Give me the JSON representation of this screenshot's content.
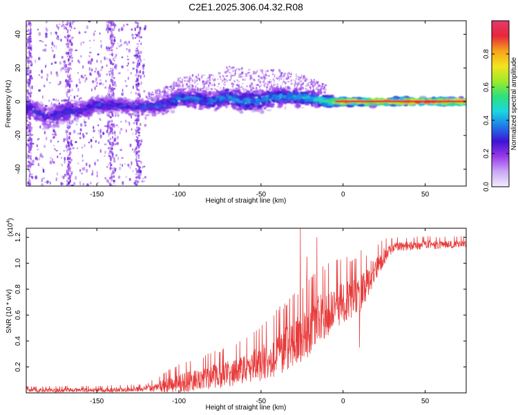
{
  "figure": {
    "title": "C2E1.2025.306.04.32.R08"
  },
  "colors": {
    "snr_line": "#e83a3a",
    "frame": "#000000",
    "background": "#ffffff",
    "colormap": [
      "#f2eefc",
      "#c9a8f5",
      "#9a3ae8",
      "#3d13d6",
      "#1f7ae8",
      "#1ad7e0",
      "#2ee07a",
      "#9eea2a",
      "#f4e31d",
      "#f6a21b",
      "#e8263b",
      "#e23a6b"
    ]
  },
  "chart_data": [
    {
      "type": "heatmap",
      "name": "spectrogram",
      "xlabel": "Height of straight line (km)",
      "ylabel": "Frequency (Hz)",
      "xlim": [
        -193,
        75
      ],
      "ylim": [
        -50,
        48
      ],
      "xticks": [
        -150,
        -100,
        -50,
        0,
        50
      ],
      "xtick_labels": [
        "-150",
        "-100",
        "-50",
        "0",
        "50"
      ],
      "yticks": [
        -40,
        -20,
        0,
        20,
        40
      ],
      "ytick_labels": [
        "-40",
        "-20",
        "0",
        "20",
        "40"
      ],
      "center_track": {
        "x": [
          -190,
          -180,
          -170,
          -160,
          -150,
          -140,
          -130,
          -120,
          -110,
          -100,
          -90,
          -80,
          -70,
          -60,
          -50,
          -40,
          -30,
          -20,
          -10,
          0,
          10,
          20,
          30,
          40,
          50,
          60,
          70,
          75
        ],
        "frequency": [
          -4,
          -10,
          -6,
          -5,
          -2,
          -2,
          -3,
          -3,
          -2,
          2,
          2,
          0,
          3,
          0,
          1,
          3,
          3,
          2,
          0,
          0,
          0,
          0,
          0,
          0,
          0,
          0,
          0,
          0
        ],
        "spread": [
          8,
          10,
          9,
          8,
          7,
          6,
          6,
          6,
          7,
          8,
          8,
          8,
          9,
          8,
          8,
          8,
          7,
          6,
          5,
          3,
          3,
          3,
          3,
          3,
          3,
          3,
          3,
          3
        ],
        "amplitude": [
          0.3,
          0.25,
          0.3,
          0.3,
          0.3,
          0.3,
          0.3,
          0.32,
          0.33,
          0.35,
          0.35,
          0.35,
          0.38,
          0.38,
          0.38,
          0.4,
          0.4,
          0.45,
          0.55,
          0.85,
          0.85,
          0.9,
          0.9,
          0.92,
          0.92,
          0.93,
          0.93,
          0.93
        ]
      },
      "scatter_region": {
        "x_range": [
          -193,
          -120
        ],
        "frequency_range": [
          -50,
          48
        ],
        "amplitude": 0.12
      },
      "colorbar": {
        "label": "Normalized spectral amplitude",
        "range": [
          0,
          1
        ],
        "ticks": [
          0.0,
          0.2,
          0.4,
          0.6,
          0.8
        ],
        "tick_labels": [
          "0.0",
          "0.2",
          "0.4",
          "0.6",
          "0.8"
        ]
      }
    },
    {
      "type": "line",
      "name": "snr",
      "xlabel": "Height of straight line (km)",
      "ylabel": "SNR (10 * v/v)",
      "scale_label": "(x10",
      "scale_exponent": "4",
      "scale_close": ")",
      "xlim": [
        -193,
        75
      ],
      "ylim": [
        0,
        1.27
      ],
      "xticks": [
        -150,
        -100,
        -50,
        0,
        50
      ],
      "xtick_labels": [
        "-150",
        "-100",
        "-50",
        "0",
        "50"
      ],
      "yticks": [
        0.2,
        0.4,
        0.6,
        0.8,
        1.0,
        1.2
      ],
      "ytick_labels": [
        "0.2",
        "0.4",
        "0.6",
        "0.8",
        "1.0",
        "1.2"
      ],
      "baseline": {
        "x": [
          -193,
          -150,
          -130,
          -120,
          -110,
          -100,
          -90,
          -80,
          -70,
          -60,
          -50,
          -45,
          -40,
          -35,
          -30,
          -25,
          -20,
          -15,
          -10,
          -5,
          0,
          5,
          10,
          15,
          20,
          25,
          30,
          40,
          50,
          60,
          70,
          75
        ],
        "y": [
          0.02,
          0.02,
          0.025,
          0.03,
          0.05,
          0.07,
          0.09,
          0.12,
          0.14,
          0.18,
          0.22,
          0.25,
          0.3,
          0.33,
          0.38,
          0.42,
          0.48,
          0.55,
          0.6,
          0.65,
          0.7,
          0.72,
          0.75,
          0.85,
          0.95,
          1.05,
          1.12,
          1.13,
          1.14,
          1.14,
          1.15,
          1.15
        ]
      },
      "noise": {
        "x": [
          -193,
          -120,
          -100,
          -80,
          -60,
          -40,
          -30,
          -20,
          -10,
          0,
          10,
          20,
          30,
          75
        ],
        "amplitude": [
          0.015,
          0.02,
          0.08,
          0.1,
          0.12,
          0.18,
          0.2,
          0.22,
          0.2,
          0.18,
          0.15,
          0.1,
          0.04,
          0.03
        ]
      },
      "spikes": [
        {
          "x": -26,
          "y": 1.27
        },
        {
          "x": -16,
          "y": 1.2
        },
        {
          "x": -22,
          "y": 1.05
        },
        {
          "x": -9,
          "y": 1.0
        },
        {
          "x": 10,
          "y": 0.35
        },
        {
          "x": 11,
          "y": 1.1
        },
        {
          "x": 17,
          "y": 1.02
        }
      ]
    }
  ]
}
